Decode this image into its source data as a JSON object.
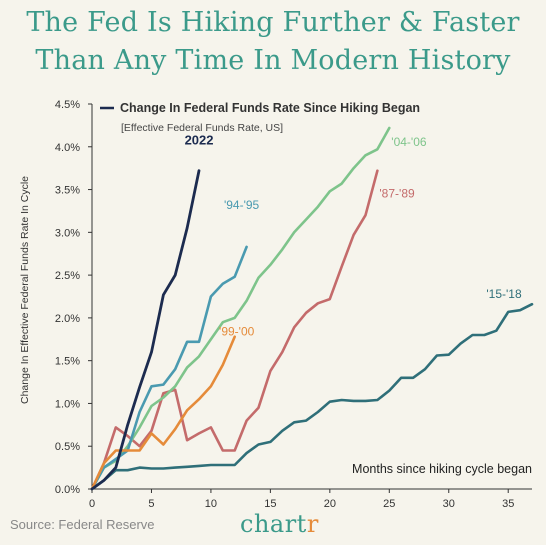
{
  "title_line1": "The Fed Is Hiking Further & Faster",
  "title_line2": "Than Any Time In Modern History",
  "source": "Source: Federal Reserve",
  "brand": {
    "main": "chart",
    "accent": "r"
  },
  "chart_data": {
    "type": "line",
    "legend_title": "Change In Federal Funds Rate Since Hiking Began",
    "legend_subtitle": "[Effective Federal Funds Rate, US]",
    "xlabel": "Months since hiking cycle began",
    "ylabel": "Change In Effective Federal Funds Rate In Cycle",
    "xlim": [
      0,
      37
    ],
    "ylim": [
      0,
      4.5
    ],
    "x_ticks": [
      0,
      5,
      10,
      15,
      20,
      25,
      30,
      35
    ],
    "x_tick_labels": [
      "0",
      "5",
      "10",
      "15",
      "20",
      "25",
      "30",
      "35"
    ],
    "y_ticks": [
      0,
      0.5,
      1.0,
      1.5,
      2.0,
      2.5,
      3.0,
      3.5,
      4.0,
      4.5
    ],
    "y_tick_labels": [
      "0.0%",
      "0.5%",
      "1.0%",
      "1.5%",
      "2.0%",
      "2.5%",
      "3.0%",
      "3.5%",
      "4.0%",
      "4.5%"
    ],
    "grid": false,
    "series": [
      {
        "name": "'15-'18",
        "color": "#2f6f79",
        "x": [
          0,
          1,
          2,
          3,
          4,
          5,
          6,
          7,
          8,
          9,
          10,
          11,
          12,
          13,
          14,
          15,
          16,
          17,
          18,
          19,
          20,
          21,
          22,
          23,
          24,
          25,
          26,
          27,
          28,
          29,
          30,
          31,
          32,
          33,
          34,
          35,
          36,
          37
        ],
        "y": [
          0,
          0.1,
          0.22,
          0.22,
          0.25,
          0.24,
          0.24,
          0.25,
          0.26,
          0.27,
          0.28,
          0.28,
          0.28,
          0.42,
          0.52,
          0.55,
          0.68,
          0.78,
          0.8,
          0.9,
          1.02,
          1.04,
          1.03,
          1.03,
          1.04,
          1.15,
          1.3,
          1.3,
          1.4,
          1.56,
          1.57,
          1.7,
          1.8,
          1.8,
          1.85,
          2.07,
          2.09,
          2.16
        ]
      },
      {
        "name": "'87-'89",
        "color": "#c46b6b",
        "x": [
          0,
          1,
          2,
          3,
          4,
          5,
          6,
          7,
          8,
          9,
          10,
          11,
          12,
          13,
          14,
          15,
          16,
          17,
          18,
          19,
          20,
          21,
          22,
          23,
          24
        ],
        "y": [
          0,
          0.3,
          0.72,
          0.62,
          0.5,
          0.68,
          1.12,
          1.16,
          0.57,
          0.65,
          0.72,
          0.45,
          0.45,
          0.8,
          0.95,
          1.38,
          1.6,
          1.89,
          2.06,
          2.17,
          2.22,
          2.6,
          2.97,
          3.2,
          3.72
        ]
      },
      {
        "name": "'04-'06",
        "color": "#7ec48b",
        "x": [
          0,
          1,
          2,
          3,
          4,
          5,
          6,
          7,
          8,
          9,
          10,
          11,
          12,
          13,
          14,
          15,
          16,
          17,
          18,
          19,
          20,
          21,
          22,
          23,
          24,
          25
        ],
        "y": [
          0,
          0.25,
          0.33,
          0.5,
          0.72,
          0.97,
          1.07,
          1.2,
          1.42,
          1.55,
          1.75,
          1.95,
          2.0,
          2.2,
          2.47,
          2.62,
          2.8,
          3.0,
          3.15,
          3.3,
          3.48,
          3.57,
          3.75,
          3.9,
          3.97,
          4.22
        ]
      },
      {
        "name": "'94-'95",
        "color": "#4a9ab0",
        "x": [
          0,
          1,
          2,
          3,
          4,
          5,
          6,
          7,
          8,
          9,
          10,
          11,
          12,
          13
        ],
        "y": [
          0,
          0.25,
          0.35,
          0.45,
          0.9,
          1.2,
          1.22,
          1.4,
          1.72,
          1.72,
          2.25,
          2.4,
          2.48,
          2.83
        ]
      },
      {
        "name": "'99-'00",
        "color": "#e58b3a",
        "x": [
          0,
          1,
          2,
          3,
          4,
          5,
          6,
          7,
          8,
          9,
          10,
          11,
          12
        ],
        "y": [
          0,
          0.3,
          0.45,
          0.45,
          0.45,
          0.65,
          0.52,
          0.7,
          0.92,
          1.05,
          1.2,
          1.45,
          1.78
        ]
      },
      {
        "name": "2022",
        "color": "#1c2b4f",
        "x": [
          0,
          1,
          2,
          3,
          4,
          5,
          6,
          7,
          8,
          9
        ],
        "y": [
          0,
          0.1,
          0.25,
          0.75,
          1.19,
          1.6,
          2.27,
          2.5,
          3.05,
          3.72
        ]
      }
    ]
  }
}
